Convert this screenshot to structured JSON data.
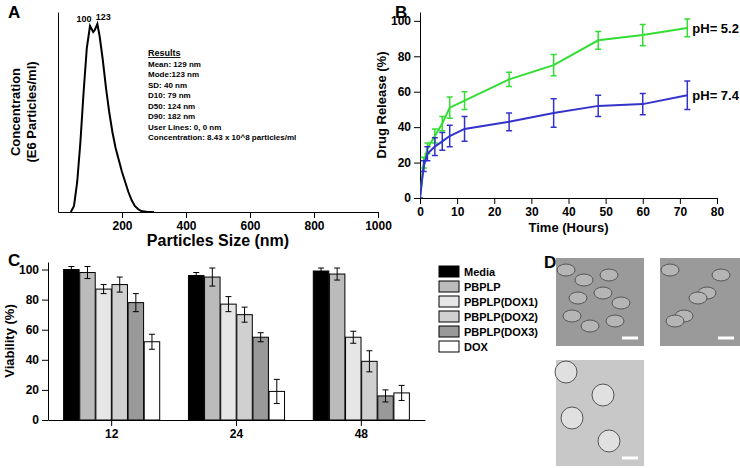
{
  "chart_data": [
    {
      "type": "line",
      "title": "A",
      "x_label": "Particles Size (nm)",
      "y_label": [
        "Concentration",
        "(E6 Particles/ml)"
      ],
      "x": [
        40,
        50,
        60,
        70,
        80,
        90,
        100,
        110,
        115,
        123,
        130,
        140,
        150,
        160,
        170,
        180,
        190,
        200,
        210,
        220,
        230,
        240,
        250,
        260,
        280,
        300
      ],
      "values": [
        0,
        0.3,
        1.5,
        3.5,
        6,
        8.2,
        9.3,
        9.0,
        9.1,
        9.4,
        8.8,
        7.6,
        6.2,
        5.0,
        4.0,
        3.2,
        2.6,
        2.0,
        1.5,
        1.0,
        0.6,
        0.3,
        0.15,
        0.05,
        0,
        0
      ],
      "color": "#000000",
      "xlim": [
        0,
        1000
      ],
      "xticks": [
        200,
        400,
        600,
        800,
        1000
      ],
      "ylim": [
        0,
        10
      ],
      "tick_labels": "x",
      "annotations": [
        {
          "text": "100",
          "x": 100,
          "y": 9.3
        },
        {
          "text": "123",
          "x": 123,
          "y": 9.4
        }
      ],
      "results": [
        "Results",
        "Mean: 129 nm",
        "Mode:123 nm",
        "SD: 40 nm",
        "D10: 79 nm",
        "D50: 124 nm",
        "D90: 182 nm",
        "User Lines: 0, 0 nm",
        "Concentration: 8.43 x 10^8 particles/ml"
      ]
    },
    {
      "type": "line",
      "title": "B",
      "x_label": "Time (Hours)",
      "y_label": "Drug Release (%)",
      "x": [
        0,
        1,
        2,
        4,
        6,
        8,
        12,
        24,
        36,
        48,
        60,
        72
      ],
      "series": [
        {
          "name": "pH= 5.2",
          "color": "#33dd33",
          "values": [
            0,
            20,
            28,
            35,
            42,
            51,
            55,
            67,
            75,
            89,
            92,
            96
          ],
          "errors": [
            0,
            3,
            3,
            4,
            4,
            6,
            5,
            4,
            6,
            5,
            6,
            5
          ]
        },
        {
          "name": "pH= 7.4",
          "color": "#3333cc",
          "values": [
            0,
            18,
            25,
            29,
            32,
            35,
            39,
            43,
            48,
            52,
            53,
            58
          ],
          "errors": [
            0,
            3,
            4,
            5,
            5,
            6,
            7,
            5,
            8,
            6,
            6,
            8
          ]
        }
      ],
      "xlim": [
        0,
        80
      ],
      "xticks": [
        0,
        10,
        20,
        30,
        40,
        50,
        60,
        70,
        80
      ],
      "ylim": [
        0,
        105
      ],
      "yticks": [
        0,
        20,
        40,
        60,
        80,
        100
      ]
    },
    {
      "type": "bar",
      "title": "C",
      "y_label": "Viability (%)",
      "categories": [
        "12",
        "24",
        "48"
      ],
      "series": [
        {
          "name": "Media",
          "color": "#000000",
          "values": [
            100,
            96,
            99
          ],
          "errors": [
            2,
            2,
            2
          ]
        },
        {
          "name": "PBPLP",
          "color": "#bbbbbb",
          "values": [
            98,
            95,
            97
          ],
          "errors": [
            4,
            6,
            4
          ]
        },
        {
          "name": "PBPLP(DOX1)",
          "color": "#e6e6e6",
          "values": [
            87,
            77,
            55
          ],
          "errors": [
            3,
            5,
            4
          ]
        },
        {
          "name": "PBPLP(DOX2)",
          "color": "#d0d0d0",
          "values": [
            90,
            70,
            39
          ],
          "errors": [
            5,
            5,
            7
          ]
        },
        {
          "name": "PBPLP(DOX3)",
          "color": "#999999",
          "values": [
            78,
            55,
            16
          ],
          "errors": [
            6,
            3,
            4
          ]
        },
        {
          "name": "DOX",
          "color": "#ffffff",
          "values": [
            52,
            19,
            18
          ],
          "errors": [
            5,
            8,
            5
          ]
        }
      ],
      "ylim": [
        0,
        105
      ],
      "yticks": [
        0,
        20,
        40,
        60,
        80,
        100
      ],
      "legend": "right"
    },
    {
      "type": "image",
      "title": "D"
    }
  ]
}
